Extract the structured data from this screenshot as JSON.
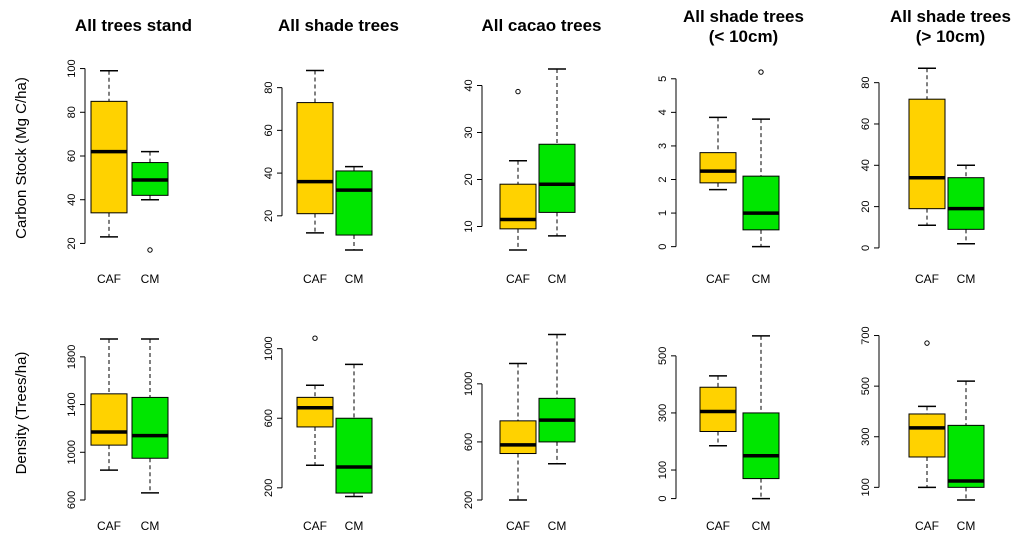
{
  "colors": {
    "CAF": "#FFD200",
    "CM": "#00E600",
    "stroke": "#000000"
  },
  "row_labels": [
    "Carbon Stock (Mg C/ha)",
    "Density (Trees/ha)"
  ],
  "chart_data": [
    {
      "type": "box",
      "title": "All trees stand",
      "ylabel": "Carbon Stock (Mg C/ha)",
      "categories": [
        "CAF",
        "CM"
      ],
      "ylim": [
        17,
        103
      ],
      "yticks": [
        20,
        40,
        60,
        80,
        100
      ],
      "boxes": [
        {
          "name": "CAF",
          "min": 23,
          "q1": 34,
          "median": 62,
          "q3": 85,
          "max": 99,
          "outliers": []
        },
        {
          "name": "CM",
          "min": 40,
          "q1": 42,
          "median": 49,
          "q3": 57,
          "max": 62,
          "outliers": [
            17
          ]
        }
      ]
    },
    {
      "type": "box",
      "title": "All shade trees",
      "ylabel": "",
      "categories": [
        "CAF",
        "CM"
      ],
      "ylim": [
        4,
        92
      ],
      "yticks": [
        20,
        40,
        60,
        80
      ],
      "boxes": [
        {
          "name": "CAF",
          "min": 12,
          "q1": 21,
          "median": 36,
          "q3": 73,
          "max": 88,
          "outliers": []
        },
        {
          "name": "CM",
          "min": 4,
          "q1": 11,
          "median": 32,
          "q3": 41,
          "max": 43,
          "outliers": []
        }
      ]
    },
    {
      "type": "box",
      "title": "All cacao trees",
      "ylabel": "",
      "categories": [
        "CAF",
        "CM"
      ],
      "ylim": [
        5,
        45
      ],
      "yticks": [
        10,
        20,
        30,
        40
      ],
      "boxes": [
        {
          "name": "CAF",
          "min": 5,
          "q1": 9.5,
          "median": 11.5,
          "q3": 19,
          "max": 24,
          "outliers": [
            38.7
          ]
        },
        {
          "name": "CM",
          "min": 8,
          "q1": 13,
          "median": 19,
          "q3": 27.5,
          "max": 43.5,
          "outliers": []
        }
      ]
    },
    {
      "type": "box",
      "title": "All shade trees\n(< 10cm)",
      "ylabel": "",
      "categories": [
        "CAF",
        "CM"
      ],
      "ylim": [
        -0.1,
        5.5
      ],
      "yticks": [
        0,
        1,
        2,
        3,
        4,
        5
      ],
      "boxes": [
        {
          "name": "CAF",
          "min": 1.7,
          "q1": 1.9,
          "median": 2.25,
          "q3": 2.8,
          "max": 3.85,
          "outliers": []
        },
        {
          "name": "CM",
          "min": 0,
          "q1": 0.5,
          "median": 1.0,
          "q3": 2.1,
          "max": 3.8,
          "outliers": [
            5.2
          ]
        }
      ]
    },
    {
      "type": "box",
      "title": "All shade trees\n(> 10cm)",
      "ylabel": "",
      "categories": [
        "CAF",
        "CM"
      ],
      "ylim": [
        -1,
        90
      ],
      "yticks": [
        0,
        20,
        40,
        60,
        80
      ],
      "boxes": [
        {
          "name": "CAF",
          "min": 11,
          "q1": 19,
          "median": 34,
          "q3": 72,
          "max": 87,
          "outliers": []
        },
        {
          "name": "CM",
          "min": 2,
          "q1": 9,
          "median": 19,
          "q3": 34,
          "max": 40,
          "outliers": []
        }
      ]
    },
    {
      "type": "box",
      "title": "",
      "ylabel": "Density (Trees/ha)",
      "categories": [
        "CAF",
        "CM"
      ],
      "ylim": [
        600,
        2000
      ],
      "yticks": [
        600,
        1000,
        1400,
        1800
      ],
      "boxes": [
        {
          "name": "CAF",
          "min": 850,
          "q1": 1060,
          "median": 1170,
          "q3": 1490,
          "max": 1950,
          "outliers": []
        },
        {
          "name": "CM",
          "min": 660,
          "q1": 950,
          "median": 1140,
          "q3": 1460,
          "max": 1950,
          "outliers": []
        }
      ]
    },
    {
      "type": "box",
      "title": "",
      "ylabel": "",
      "categories": [
        "CAF",
        "CM"
      ],
      "ylim": [
        130,
        1090
      ],
      "yticks": [
        200,
        600,
        1000
      ],
      "boxes": [
        {
          "name": "CAF",
          "min": 330,
          "q1": 550,
          "median": 660,
          "q3": 720,
          "max": 790,
          "outliers": [
            1060
          ]
        },
        {
          "name": "CM",
          "min": 150,
          "q1": 170,
          "median": 320,
          "q3": 600,
          "max": 910,
          "outliers": []
        }
      ]
    },
    {
      "type": "box",
      "title": "",
      "ylabel": "",
      "categories": [
        "CAF",
        "CM"
      ],
      "ylim": [
        200,
        1350
      ],
      "yticks": [
        200,
        600,
        1000
      ],
      "boxes": [
        {
          "name": "CAF",
          "min": 200,
          "q1": 520,
          "median": 580,
          "q3": 745,
          "max": 1140,
          "outliers": []
        },
        {
          "name": "CM",
          "min": 450,
          "q1": 600,
          "median": 750,
          "q3": 900,
          "max": 1340,
          "outliers": []
        }
      ]
    },
    {
      "type": "box",
      "title": "",
      "ylabel": "",
      "categories": [
        "CAF",
        "CM"
      ],
      "ylim": [
        -5,
        580
      ],
      "yticks": [
        0,
        100,
        300,
        500
      ],
      "boxes": [
        {
          "name": "CAF",
          "min": 185,
          "q1": 235,
          "median": 305,
          "q3": 390,
          "max": 430,
          "outliers": []
        },
        {
          "name": "CM",
          "min": 0,
          "q1": 70,
          "median": 150,
          "q3": 300,
          "max": 570,
          "outliers": []
        }
      ]
    },
    {
      "type": "box",
      "title": "",
      "ylabel": "",
      "categories": [
        "CAF",
        "CM"
      ],
      "ylim": [
        50,
        710
      ],
      "yticks": [
        100,
        300,
        500,
        700
      ],
      "boxes": [
        {
          "name": "CAF",
          "min": 100,
          "q1": 220,
          "median": 335,
          "q3": 390,
          "max": 420,
          "outliers": [
            670
          ]
        },
        {
          "name": "CM",
          "min": 50,
          "q1": 100,
          "median": 125,
          "q3": 345,
          "max": 520,
          "outliers": []
        }
      ]
    }
  ]
}
